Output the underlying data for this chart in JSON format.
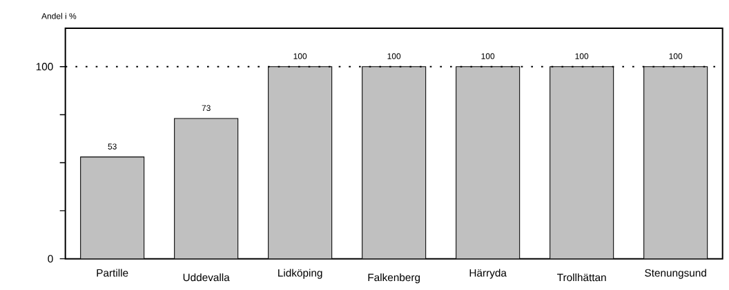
{
  "chart_data": {
    "type": "bar",
    "ylabel": "Andel i %",
    "categories": [
      "Partille",
      "Uddevalla",
      "Lidköping",
      "Falkenberg",
      "Härryda",
      "Trollhättan",
      "Stenungsund"
    ],
    "values": [
      53,
      73,
      100,
      100,
      100,
      100,
      100
    ],
    "color": "#c0c0c0",
    "data_labels": true,
    "ylim": [
      0,
      120
    ],
    "yticks": [
      0,
      {
        "value": 25,
        "label": null
      },
      {
        "value": 50,
        "label": null
      },
      {
        "value": 75,
        "label": null
      },
      100
    ],
    "ref_lines": [
      {
        "axis": "y",
        "value": 100,
        "line_style": "dotted"
      }
    ],
    "grid": false
  }
}
